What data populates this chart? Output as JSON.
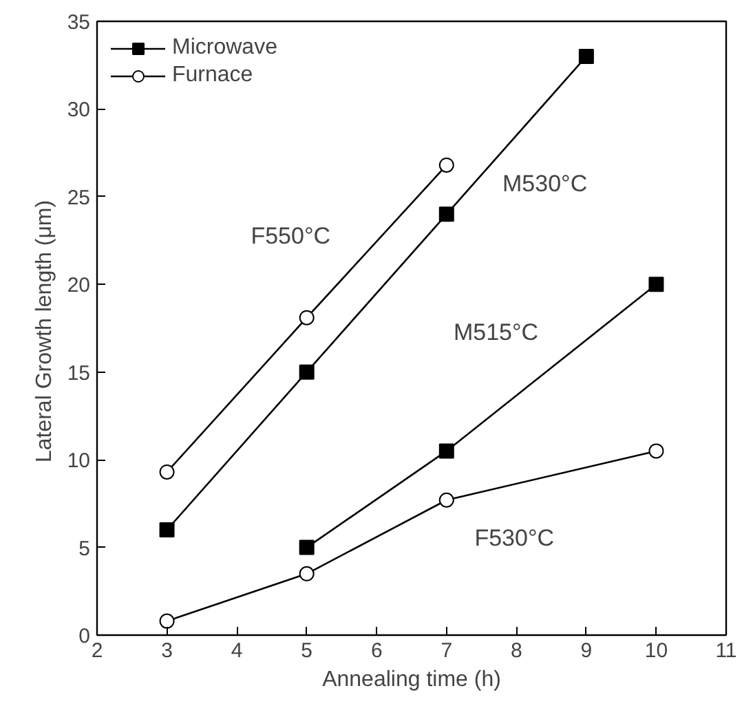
{
  "chart_data": {
    "type": "line",
    "xlabel": "Annealing time (h)",
    "ylabel": "Lateral Growth  length (μm)",
    "xlim": [
      2,
      11
    ],
    "xticks": [
      2,
      3,
      4,
      5,
      6,
      7,
      8,
      9,
      10,
      11
    ],
    "ylim": [
      0,
      35
    ],
    "yticks": [
      0,
      5,
      10,
      15,
      20,
      25,
      30,
      35
    ],
    "grid": false,
    "legend": "top left",
    "line_style": "solid",
    "series": [
      {
        "name": "Microwave",
        "color": "#000000",
        "marker": "square",
        "x": [
          3,
          5,
          7,
          9
        ],
        "values": [
          6,
          15,
          24,
          33
        ]
      },
      {
        "name": "Furnace",
        "color": "#000000",
        "marker": "circle",
        "x": [
          3,
          5,
          7
        ],
        "values": [
          9.3,
          18.1,
          26.8
        ]
      },
      {
        "color": "#000000",
        "marker": "square",
        "x": [
          5,
          7,
          10
        ],
        "values": [
          5,
          10.5,
          20
        ]
      },
      {
        "color": "#000000",
        "marker": "circle",
        "x": [
          3,
          5,
          7,
          10
        ],
        "values": [
          0.8,
          3.5,
          7.7,
          10.5
        ]
      }
    ],
    "annotations": [
      "F550°C",
      "M530°C",
      "M515°C",
      "F530°C"
    ]
  }
}
